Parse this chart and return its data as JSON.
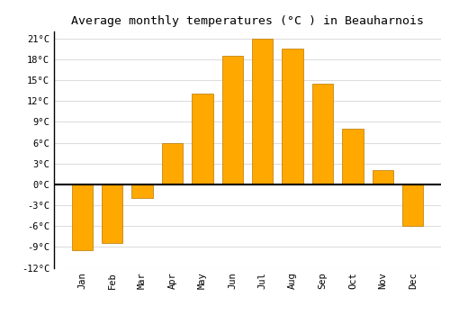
{
  "title": "Average monthly temperatures (°C ) in Beauharnois",
  "months": [
    "Jan",
    "Feb",
    "Mar",
    "Apr",
    "May",
    "Jun",
    "Jul",
    "Aug",
    "Sep",
    "Oct",
    "Nov",
    "Dec"
  ],
  "values": [
    -9.5,
    -8.5,
    -2.0,
    6.0,
    13.0,
    18.5,
    21.0,
    19.5,
    14.5,
    8.0,
    2.0,
    -6.0
  ],
  "bar_color": "#FFA800",
  "bar_edge_color": "#B87800",
  "background_color": "#FFFFFF",
  "grid_color": "#DDDDDD",
  "zero_line_color": "#000000",
  "ylim": [
    -12,
    22
  ],
  "yticks": [
    -12,
    -9,
    -6,
    -3,
    0,
    3,
    6,
    9,
    12,
    15,
    18,
    21
  ],
  "ytick_labels": [
    "-12°C",
    "-9°C",
    "-6°C",
    "-3°C",
    "0°C",
    "3°C",
    "6°C",
    "9°C",
    "12°C",
    "15°C",
    "18°C",
    "21°C"
  ],
  "title_fontsize": 9.5,
  "tick_fontsize": 7.5,
  "title_font": "monospace",
  "tick_font": "monospace"
}
